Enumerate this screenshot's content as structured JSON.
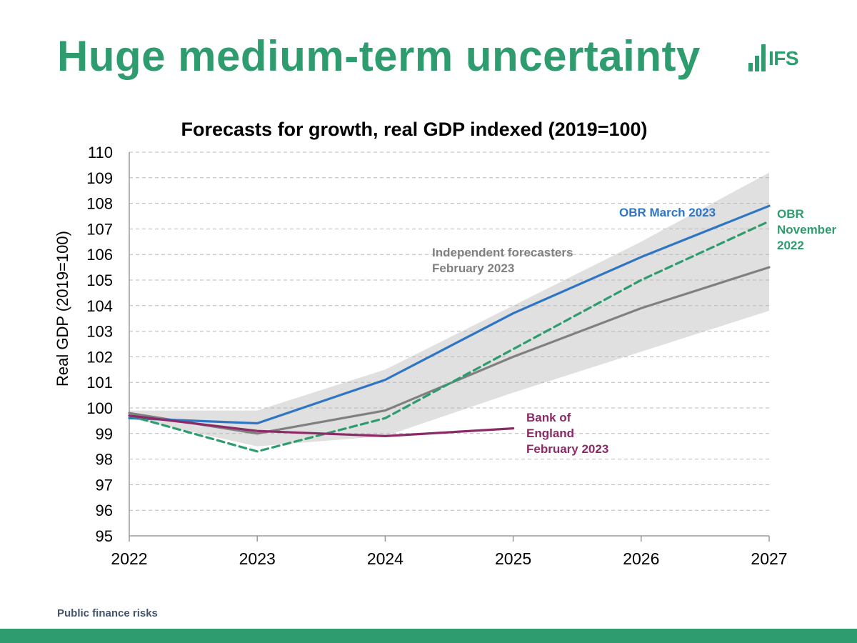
{
  "slide": {
    "title": "Huge medium-term uncertainty",
    "footer": "Public finance risks",
    "brand_color": "#2e9c6e",
    "logo": {
      "text": "IFS",
      "icon": "bar-chart-logo-icon"
    }
  },
  "chart_data": {
    "type": "line",
    "title": "Forecasts for growth, real GDP indexed (2019=100)",
    "xlabel": "",
    "ylabel": "Real GDP (2019=100)",
    "categories": [
      "2022",
      "2023",
      "2024",
      "2025",
      "2026",
      "2027"
    ],
    "x": [
      2022,
      2023,
      2024,
      2025,
      2026,
      2027
    ],
    "ylim": [
      95,
      110
    ],
    "yticks": [
      95,
      96,
      97,
      98,
      99,
      100,
      101,
      102,
      103,
      104,
      105,
      106,
      107,
      108,
      109,
      110
    ],
    "grid": "horizontal dashed",
    "band": {
      "color": "#e0e0e0",
      "lower": [
        99.6,
        98.5,
        98.9,
        100.6,
        102.2,
        103.8
      ],
      "upper": [
        99.9,
        99.9,
        101.5,
        104.0,
        106.5,
        109.2
      ]
    },
    "series": [
      {
        "name": "Independent forecasters February 2023",
        "label_lines": [
          "Independent forecasters",
          "February 2023"
        ],
        "color": "#808080",
        "dash": "solid",
        "x": [
          2022,
          2023,
          2024,
          2025,
          2026,
          2027
        ],
        "values": [
          99.8,
          99.0,
          99.9,
          102.0,
          103.9,
          105.5
        ]
      },
      {
        "name": "OBR March 2023",
        "label_lines": [
          "OBR March 2023"
        ],
        "color": "#2e75c4",
        "dash": "solid",
        "x": [
          2022,
          2023,
          2024,
          2025,
          2026,
          2027
        ],
        "values": [
          99.6,
          99.4,
          101.1,
          103.7,
          105.9,
          107.9
        ]
      },
      {
        "name": "OBR November 2022",
        "label_lines": [
          "OBR",
          "November",
          "2022"
        ],
        "color": "#2e9c6e",
        "dash": "dashed",
        "x": [
          2022,
          2023,
          2024,
          2025,
          2026,
          2027
        ],
        "values": [
          99.7,
          98.3,
          99.6,
          102.3,
          105.0,
          107.3
        ]
      },
      {
        "name": "Bank of England February 2023",
        "label_lines": [
          "Bank of",
          "England",
          "February 2023"
        ],
        "color": "#8b2a66",
        "dash": "solid",
        "x": [
          2022,
          2023,
          2024,
          2025
        ],
        "values": [
          99.7,
          99.1,
          98.9,
          99.2
        ]
      }
    ]
  }
}
